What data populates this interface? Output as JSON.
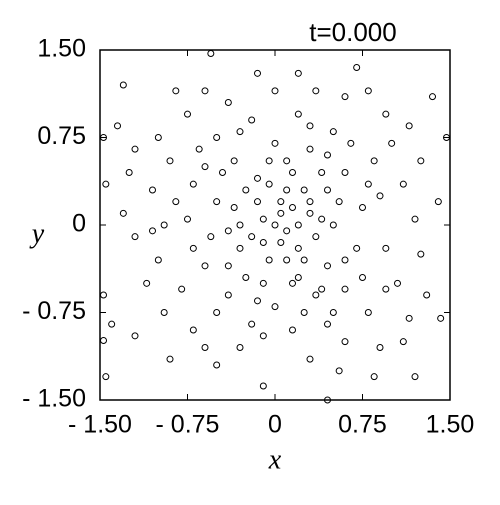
{
  "chart_data": {
    "type": "scatter",
    "title": "t=0.000",
    "x_label": "x",
    "y_label": "y",
    "xlim": [
      -1.5,
      1.5
    ],
    "ylim": [
      -1.5,
      1.5
    ],
    "xticks": [
      {
        "value": -1.5,
        "label": "- 1.50"
      },
      {
        "value": -0.75,
        "label": "- 0.75"
      },
      0,
      0.75,
      {
        "value": 1.5,
        "label": "1.50"
      }
    ],
    "yticks": [
      {
        "value": -1.5,
        "label": "- 1.50"
      },
      {
        "value": -0.75,
        "label": "- 0.75"
      },
      0,
      0.75,
      {
        "value": 1.5,
        "label": "1.50"
      }
    ],
    "color": "#000000",
    "x": [
      -0.55,
      1.35,
      -1.3,
      -1.45,
      0.45,
      -0.1,
      1.47,
      -1.47,
      -1.45,
      -1.47,
      -1.4,
      -1.47,
      1.4,
      1.42,
      1.2,
      0.85,
      -0.15,
      0.2,
      0.7,
      0.8,
      -0.85,
      -1.0,
      -1.2,
      -1.35,
      -1.25,
      -1.3,
      -1.2,
      -1.0,
      -0.95,
      -1.2,
      -0.9,
      -0.5,
      -0.6,
      -0.3,
      0.3,
      0.55,
      0.6,
      0.9,
      1.1,
      1.15,
      1.3,
      1.05,
      1.25,
      1.2,
      1.1,
      1.25,
      1.15,
      0.95,
      0.6,
      0.35,
      0.0,
      -0.4,
      -0.6,
      -0.75,
      -0.9,
      -1.05,
      -1.1,
      -0.8,
      -0.7,
      -0.2,
      0.15,
      0.45,
      0.8,
      0.95,
      0.9,
      0.85,
      0.5,
      0.2,
      -0.2,
      -0.5,
      -0.7,
      -0.75,
      -0.6,
      -0.4,
      0.0,
      0.35,
      0.6,
      0.7,
      0.75,
      0.6,
      0.3,
      0.0,
      -0.35,
      -0.5,
      -0.55,
      -0.4,
      -0.1,
      0.2,
      0.45,
      0.5,
      0.45,
      0.15,
      -0.15,
      -0.35,
      -0.3,
      -0.05,
      0.2,
      0.3,
      0.05,
      -0.1,
      0.1,
      0.0,
      -0.2,
      0.25,
      -0.25,
      0.35,
      -0.45,
      0.55,
      0.4,
      -0.15,
      0.1,
      -0.6,
      0.65,
      -0.3,
      0.1,
      0.15,
      -0.05,
      0.4,
      -0.4,
      0.05,
      -0.15,
      0.6,
      -0.7,
      0.8,
      -0.85,
      0.25,
      -0.5,
      0.95,
      -0.95,
      0.3,
      -0.1,
      0.75,
      -0.65,
      1.0,
      -1.05,
      0.5,
      0.2,
      -0.05,
      0.45,
      -0.25,
      0.25,
      0.05,
      -0.1,
      0.3,
      0.1,
      -0.3,
      0.4,
      0.15
    ],
    "y": [
      1.47,
      1.1,
      1.2,
      -1.3,
      -1.5,
      -1.38,
      0.75,
      0.75,
      0.35,
      -0.6,
      -0.85,
      -0.99,
      0.2,
      -0.8,
      -1.3,
      -1.3,
      1.3,
      1.3,
      1.35,
      1.15,
      1.15,
      0.75,
      0.65,
      0.85,
      0.45,
      0.1,
      -0.1,
      -0.3,
      -0.75,
      -0.95,
      -1.15,
      -1.2,
      -1.05,
      -1.05,
      -1.15,
      -1.25,
      -1.0,
      -1.05,
      -1.0,
      -0.8,
      -0.6,
      -0.5,
      -0.25,
      0.05,
      0.35,
      0.55,
      0.85,
      0.95,
      1.1,
      1.15,
      1.15,
      1.05,
      1.15,
      0.95,
      0.55,
      0.3,
      -0.5,
      -0.55,
      -0.9,
      -0.85,
      -0.9,
      -0.85,
      -0.75,
      -0.2,
      0.25,
      0.55,
      0.8,
      0.95,
      0.9,
      0.75,
      0.35,
      0.05,
      -0.35,
      -0.6,
      -0.7,
      -0.6,
      -0.55,
      -0.2,
      0.15,
      0.45,
      0.65,
      0.7,
      0.55,
      0.2,
      -0.1,
      -0.35,
      -0.5,
      -0.45,
      -0.35,
      0.0,
      0.3,
      0.45,
      0.4,
      0.15,
      -0.2,
      -0.3,
      -0.2,
      0.1,
      0.2,
      0.05,
      -0.05,
      0.0,
      -0.1,
      0.3,
      0.3,
      -0.1,
      0.45,
      0.2,
      -0.55,
      -0.65,
      0.55,
      0.5,
      0.7,
      0.8,
      -0.3,
      0.15,
      0.35,
      0.45,
      -0.05,
      -0.15,
      0.2,
      -0.3,
      -0.2,
      0.35,
      0.2,
      -0.75,
      -0.75,
      -0.55,
      0.0,
      0.85,
      -0.95,
      -0.45,
      0.65,
      0.7,
      -0.05,
      -0.75,
      0.0,
      0.55,
      0.6,
      -0.45,
      -0.3,
      0.1,
      -0.15,
      0.2,
      0.3,
      0.0,
      0.05,
      -0.5
    ]
  }
}
